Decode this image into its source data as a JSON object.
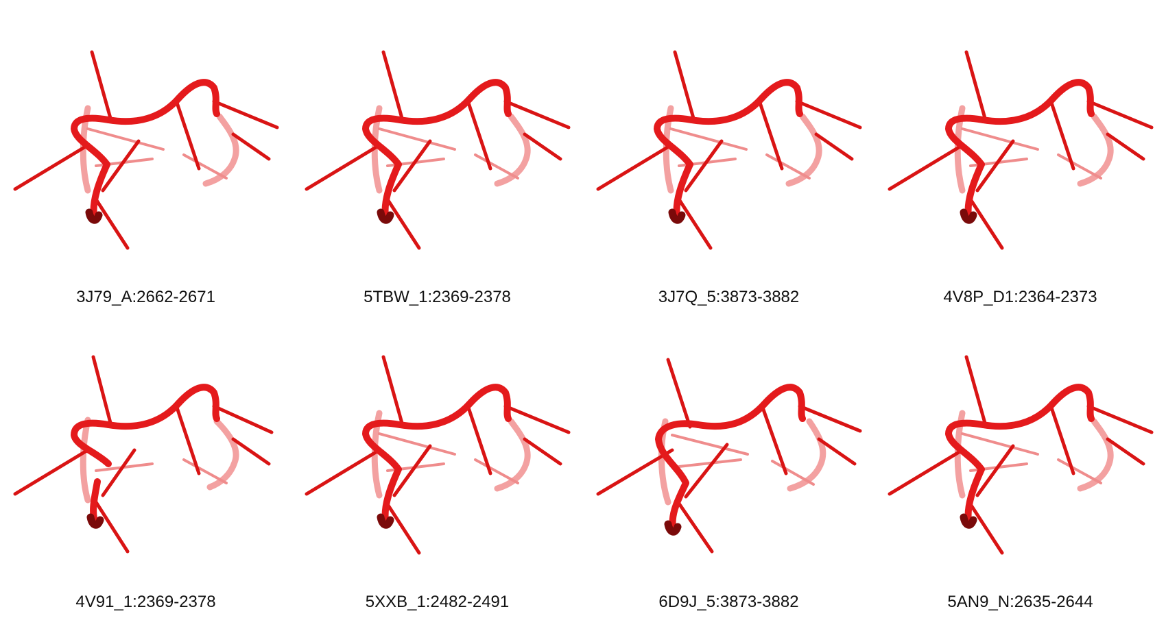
{
  "colors": {
    "backbone": "#e41a1c",
    "backbone_dark": "#7a0a0a",
    "backbone_faded": "#f08a8a",
    "stick": "#d91414",
    "stick_faded": "#ef8c8c",
    "background": "#ffffff",
    "label": "#111111"
  },
  "panels": [
    {
      "label": "3J79_A:2662-2671",
      "variant": "standard"
    },
    {
      "label": "5TBW_1:2369-2378",
      "variant": "standard"
    },
    {
      "label": "3J7Q_5:3873-3882",
      "variant": "standard"
    },
    {
      "label": "4V8P_D1:2364-2373",
      "variant": "standard"
    },
    {
      "label": "4V91_1:2369-2378",
      "variant": "broken"
    },
    {
      "label": "5XXB_1:2482-2491",
      "variant": "standard"
    },
    {
      "label": "6D9J_5:3873-3882",
      "variant": "wide"
    },
    {
      "label": "5AN9_N:2635-2644",
      "variant": "standard"
    }
  ]
}
